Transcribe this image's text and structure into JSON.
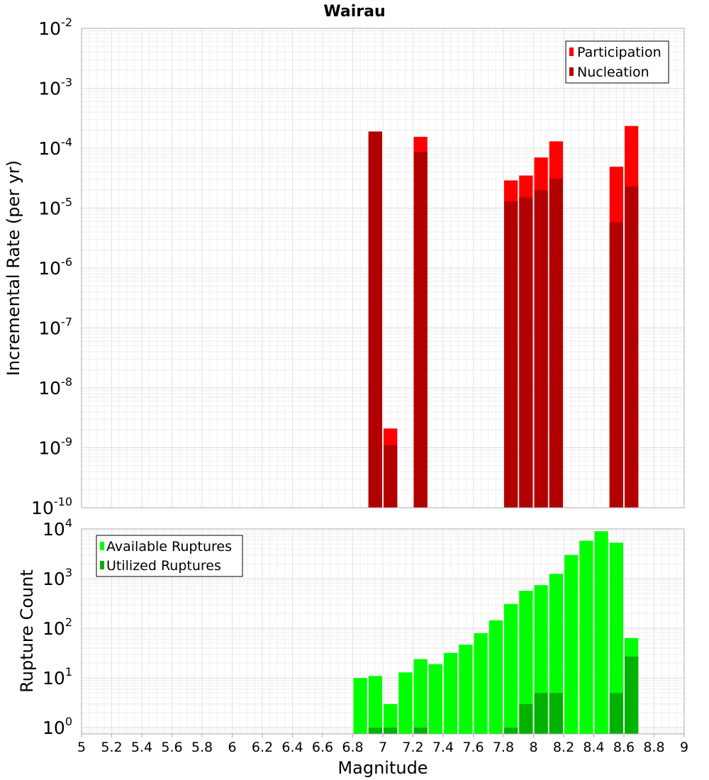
{
  "chart_data": [
    {
      "type": "bar",
      "title": "Wairau",
      "xlabel": "",
      "ylabel": "Incremental Rate (per yr)",
      "y_scale": "log",
      "y_tick_base": "10",
      "y_tick_exponents": [
        "-10",
        "-9",
        "-8",
        "-7",
        "-6",
        "-5",
        "-4",
        "-3",
        "-2"
      ],
      "ylim": [
        1e-10,
        0.01
      ],
      "xlim": [
        5,
        9
      ],
      "grid": true,
      "legend_position": "top-right",
      "bar_width": 0.1,
      "series": [
        {
          "name": "Participation",
          "color": "#ff0000",
          "x": [
            6.95,
            7.05,
            7.25,
            7.85,
            7.95,
            8.05,
            8.15,
            8.55,
            8.65
          ],
          "values": [
            0.00019,
            2.1e-09,
            0.000155,
            2.9e-05,
            3.5e-05,
            7e-05,
            0.00013,
            4.9e-05,
            0.000235
          ]
        },
        {
          "name": "Nucleation",
          "color": "#b20000",
          "x": [
            6.95,
            7.05,
            7.25,
            7.85,
            7.95,
            8.05,
            8.15,
            8.55,
            8.65
          ],
          "values": [
            0.00019,
            1.1e-09,
            8.7e-05,
            1.3e-05,
            1.5e-05,
            2e-05,
            3.1e-05,
            5.8e-06,
            2.3e-05
          ]
        }
      ]
    },
    {
      "type": "bar",
      "title": "",
      "xlabel": "Magnitude",
      "ylabel": "Rupture Count",
      "y_scale": "log",
      "y_tick_base": "10",
      "y_tick_exponents": [
        "0",
        "1",
        "2",
        "3",
        "4"
      ],
      "ylim": [
        0.75,
        10000
      ],
      "xlim": [
        5,
        9
      ],
      "x_ticks": [
        "5",
        "5.2",
        "5.4",
        "5.6",
        "5.8",
        "6",
        "6.2",
        "6.4",
        "6.6",
        "6.8",
        "7",
        "7.2",
        "7.4",
        "7.6",
        "7.8",
        "8",
        "8.2",
        "8.4",
        "8.6",
        "8.8",
        "9"
      ],
      "grid": true,
      "legend_position": "top-left",
      "bar_width": 0.1,
      "series": [
        {
          "name": "Available Ruptures",
          "color": "#00ff00",
          "x": [
            6.85,
            6.95,
            7.05,
            7.15,
            7.25,
            7.35,
            7.45,
            7.55,
            7.65,
            7.75,
            7.85,
            7.95,
            8.05,
            8.15,
            8.25,
            8.35,
            8.45,
            8.55,
            8.65
          ],
          "values": [
            10,
            11,
            3,
            13,
            24,
            19,
            32,
            47,
            80,
            145,
            310,
            570,
            740,
            1250,
            3000,
            5800,
            9000,
            5300,
            64
          ]
        },
        {
          "name": "Utilized Ruptures",
          "color": "#00b200",
          "x": [
            6.95,
            7.05,
            7.25,
            7.85,
            7.95,
            8.05,
            8.15,
            8.55,
            8.65
          ],
          "values": [
            1,
            1,
            1,
            1,
            3,
            5,
            5,
            5,
            27
          ]
        }
      ]
    }
  ]
}
